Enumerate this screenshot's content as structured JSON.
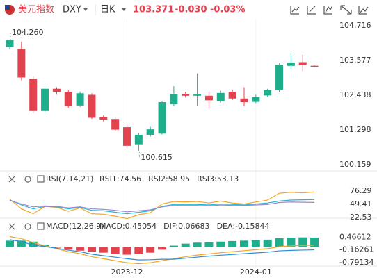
{
  "header": {
    "name": "美元指数",
    "symbol": "DXY",
    "period": "日K",
    "price": "103.371",
    "change": "-0.030",
    "change_pct": "-0.03%"
  },
  "chart_data": [
    {
      "type": "candlestick",
      "up_color": "#1fae8c",
      "down_color": "#e2434f",
      "open": [
        104.01,
        103.96,
        102.98,
        101.92,
        102.65,
        102.55,
        102.1,
        102.45,
        101.73,
        101.66,
        101.39,
        100.83,
        101.14,
        101.18,
        102.14,
        102.48,
        102.42,
        102.42,
        102.24,
        102.55,
        102.33,
        102.22,
        102.43,
        102.6,
        103.4,
        103.52,
        103.401
      ],
      "high": [
        104.26,
        104.19,
        103.05,
        102.7,
        102.7,
        102.6,
        102.56,
        102.5,
        101.78,
        101.72,
        101.45,
        101.2,
        101.4,
        102.25,
        102.73,
        102.55,
        103.15,
        102.56,
        102.58,
        102.62,
        102.7,
        102.45,
        102.65,
        103.48,
        103.8,
        103.77,
        103.42
      ],
      "low": [
        103.95,
        102.93,
        101.85,
        101.88,
        102.45,
        102.03,
        102.05,
        101.66,
        101.58,
        101.26,
        100.72,
        100.615,
        101.08,
        101.15,
        102.08,
        102.36,
        102.1,
        102.0,
        102.2,
        102.28,
        102.08,
        102.18,
        102.38,
        102.55,
        103.3,
        103.23,
        103.36
      ],
      "close": [
        104.24,
        103.02,
        101.92,
        102.65,
        102.55,
        102.08,
        102.5,
        101.7,
        101.64,
        101.31,
        100.78,
        101.14,
        101.32,
        102.21,
        102.48,
        102.42,
        102.46,
        102.27,
        102.51,
        102.33,
        102.21,
        102.38,
        102.6,
        103.44,
        103.51,
        103.44,
        103.371
      ],
      "ylim": [
        99.98,
        104.92
      ],
      "yticks": [
        104.716,
        103.577,
        102.438,
        101.298,
        100.159
      ],
      "xticks": [
        {
          "value": 10,
          "label": "2023-12"
        },
        {
          "value": 21,
          "label": "2024-01"
        }
      ],
      "annotations": [
        {
          "index": 0,
          "value": 104.26,
          "label": "104.260"
        },
        {
          "index": 11,
          "value": 100.615,
          "label": "100.615"
        }
      ]
    },
    {
      "type": "line",
      "title": "RSI(7,14,21)",
      "ylim": [
        18,
        100.8
      ],
      "yticks": [
        76.29,
        49.41,
        22.53
      ],
      "series": [
        {
          "label": "RSI1:74.56",
          "color": "#f5a524",
          "values": [
            60,
            40,
            30,
            45,
            43,
            35,
            42,
            30,
            29,
            25,
            20,
            28,
            32,
            50,
            55,
            54,
            55,
            52,
            56,
            52,
            50,
            54,
            58,
            72,
            74,
            73,
            74.56
          ]
        },
        {
          "label": "RSI2:58.95",
          "color": "#2bb3cf",
          "values": [
            58,
            48,
            40,
            45,
            44,
            40,
            43,
            37,
            36,
            33,
            30,
            33,
            36,
            45,
            49,
            49,
            49,
            48,
            50,
            49,
            48,
            50,
            52,
            56,
            58,
            58.5,
            58.95
          ]
        },
        {
          "label": "RSI3:53.13",
          "color": "#9b87d0",
          "values": [
            57,
            50,
            44,
            46,
            45,
            42,
            44,
            40,
            39,
            37,
            34,
            36,
            38,
            44,
            47,
            47,
            47,
            46,
            48,
            47,
            47,
            48,
            49,
            53,
            54,
            53.5,
            53.13
          ]
        }
      ]
    },
    {
      "type": "combo",
      "title": "MACD(12,26,9)",
      "ylim": [
        -1.14,
        0.76
      ],
      "yticks": [
        0.46612,
        -0.16261,
        -0.79134
      ],
      "up_color": "#1fae8c",
      "down_color": "#e2434f",
      "series": [
        {
          "label": "MACD:0.45054",
          "color": "#7a7fd6",
          "type": "bar",
          "values": [
            0.3,
            0.3,
            0.25,
            0.1,
            -0.05,
            -0.15,
            -0.2,
            -0.25,
            -0.3,
            -0.35,
            -0.4,
            -0.38,
            -0.3,
            -0.15,
            0.05,
            0.15,
            0.2,
            0.22,
            0.25,
            0.28,
            0.3,
            0.32,
            0.35,
            0.42,
            0.45,
            0.46,
            0.45054
          ]
        },
        {
          "label": "DIF:0.06683",
          "color": "#f5a524",
          "type": "line",
          "values": [
            0.5,
            0.4,
            0.2,
            0.05,
            -0.1,
            -0.25,
            -0.35,
            -0.5,
            -0.6,
            -0.7,
            -0.8,
            -0.85,
            -0.8,
            -0.7,
            -0.6,
            -0.5,
            -0.42,
            -0.36,
            -0.3,
            -0.25,
            -0.2,
            -0.15,
            -0.1,
            0,
            0.04,
            0.06,
            0.06683
          ]
        },
        {
          "label": "DEA:-0.15844",
          "color": "#2b8fd6",
          "type": "line",
          "values": [
            0.35,
            0.25,
            0.075,
            0,
            -0.075,
            -0.175,
            -0.25,
            -0.375,
            -0.45,
            -0.525,
            -0.6,
            -0.66,
            -0.65,
            -0.625,
            -0.625,
            -0.575,
            -0.52,
            -0.47,
            -0.425,
            -0.39,
            -0.35,
            -0.31,
            -0.275,
            -0.21,
            -0.185,
            -0.17,
            -0.15844
          ]
        }
      ]
    }
  ]
}
